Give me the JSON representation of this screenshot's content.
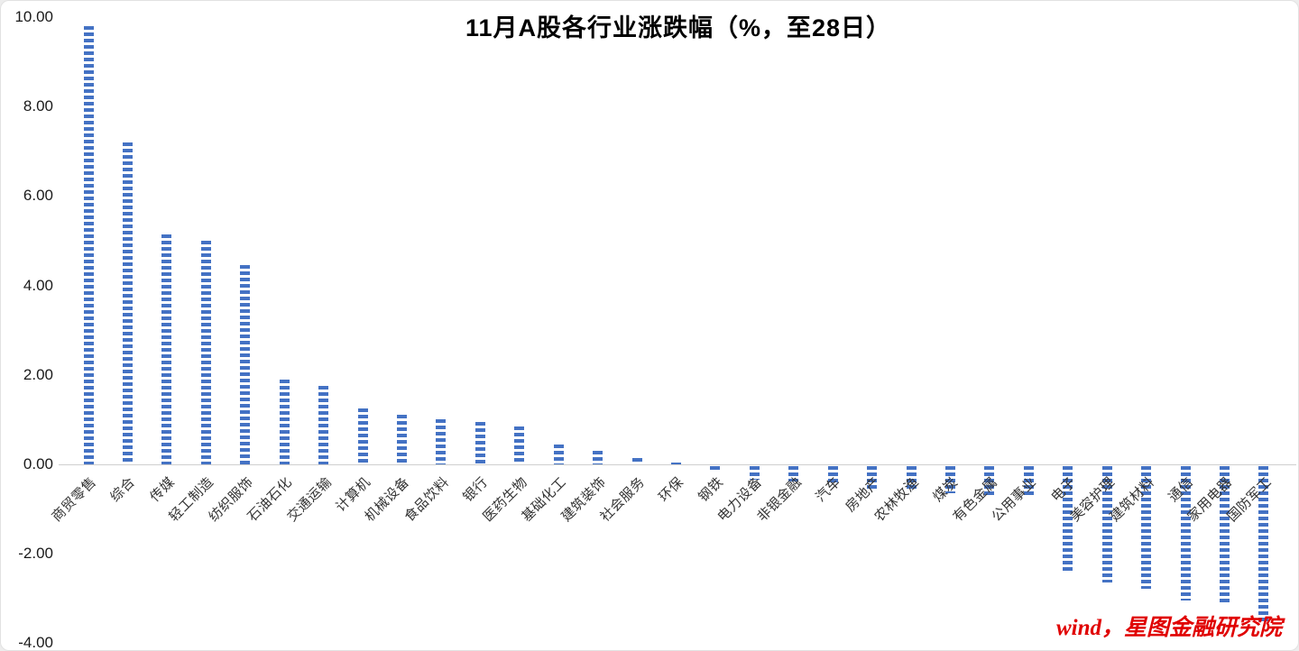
{
  "chart_data": {
    "type": "bar",
    "title": "11月A股各行业涨跌幅（%，至28日）",
    "categories": [
      "商贸零售",
      "综合",
      "传媒",
      "轻工制造",
      "纺织服饰",
      "石油石化",
      "交通运输",
      "计算机",
      "机械设备",
      "食品饮料",
      "银行",
      "医药生物",
      "基础化工",
      "建筑装饰",
      "社会服务",
      "环保",
      "钢铁",
      "电力设备",
      "非银金融",
      "汽车",
      "房地产",
      "农林牧渔",
      "煤炭",
      "有色金属",
      "公用事业",
      "电子",
      "美容护理",
      "建筑材料",
      "通信",
      "家用电器",
      "国防军工"
    ],
    "values": [
      9.8,
      7.2,
      5.15,
      5.0,
      4.45,
      1.9,
      1.75,
      1.25,
      1.1,
      1.0,
      0.95,
      0.85,
      0.45,
      0.3,
      0.15,
      0.05,
      -0.1,
      -0.3,
      -0.35,
      -0.4,
      -0.5,
      -0.55,
      -0.6,
      -0.65,
      -0.7,
      -2.4,
      -2.6,
      -2.75,
      -3.0,
      -3.1,
      -3.5
    ],
    "xlabel": "",
    "ylabel": "",
    "ylim": [
      -4,
      10
    ],
    "y_tick_values": [
      10,
      8,
      6,
      4,
      2,
      0,
      -2,
      -4
    ],
    "y_tick_labels": [
      "10.00",
      "8.00",
      "6.00",
      "4.00",
      "2.00",
      "0.00",
      "-2.00",
      "-4.00"
    ],
    "bar_color": "#4472c4",
    "bar_pattern": "horizontal-dashes",
    "grid": false,
    "legend": "none"
  },
  "source": {
    "label": "wind，星图金融研究院",
    "color": "#e00000"
  }
}
